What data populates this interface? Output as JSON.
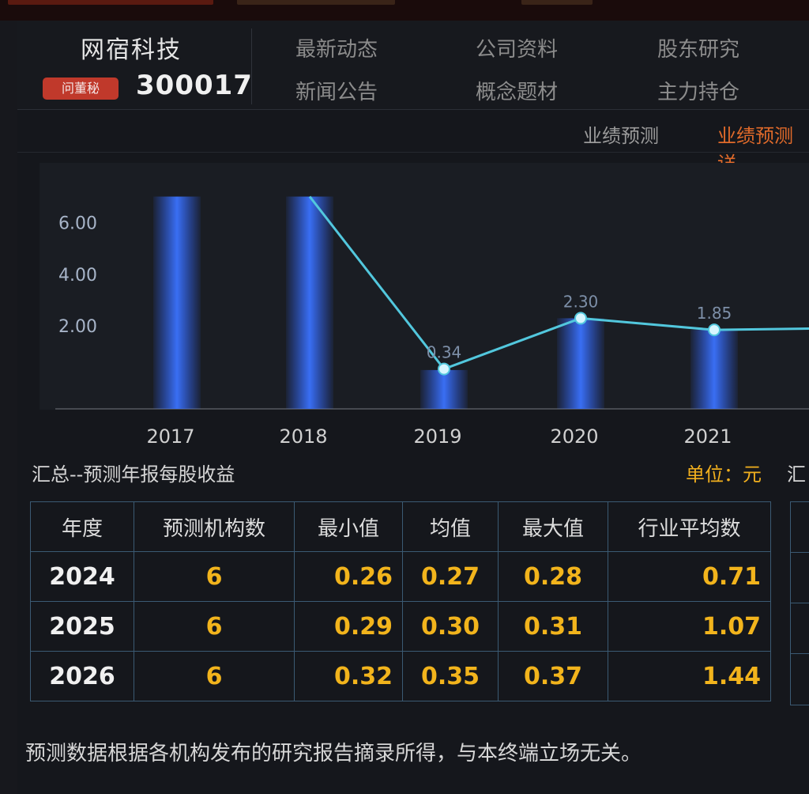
{
  "header": {
    "stock_name": "网宿科技",
    "badge": "问董秘",
    "stock_code": "300017",
    "nav": [
      {
        "label": "最新动态"
      },
      {
        "label": "公司资料"
      },
      {
        "label": "股东研究"
      },
      {
        "label": "新闻公告"
      },
      {
        "label": "概念题材"
      },
      {
        "label": "主力持仓"
      }
    ]
  },
  "subtabs": [
    {
      "label": "业绩预测"
    },
    {
      "label": "业绩预测详"
    }
  ],
  "chart_data": {
    "type": "bar",
    "categories": [
      "2017",
      "2018",
      "2019",
      "2020",
      "2021"
    ],
    "y_ticks": [
      "6.00",
      "4.00",
      "2.00"
    ],
    "ylim": [
      -1.2,
      8.3
    ],
    "line_series": {
      "values": [
        null,
        7.0,
        0.34,
        2.3,
        1.85
      ],
      "labels": [
        "",
        "",
        "0.34",
        "2.30",
        "1.85"
      ]
    },
    "bar_series": {
      "values": [
        7.0,
        7.0,
        0.3,
        2.3,
        1.85
      ]
    },
    "colors": {
      "line": "#52c7dd",
      "bar": "#2f63ff"
    }
  },
  "caption": "汇总--预测年报每股收益",
  "unit": "单位：元",
  "unit_extra": "汇",
  "table": {
    "headers": [
      "年度",
      "预测机构数",
      "最小值",
      "均值",
      "最大值",
      "行业平均数"
    ],
    "rows": [
      {
        "year": "2024",
        "count": "6",
        "min": "0.26",
        "avg": "0.27",
        "max": "0.28",
        "industry": "0.71"
      },
      {
        "year": "2025",
        "count": "6",
        "min": "0.29",
        "avg": "0.30",
        "max": "0.31",
        "industry": "1.07"
      },
      {
        "year": "2026",
        "count": "6",
        "min": "0.32",
        "avg": "0.35",
        "max": "0.37",
        "industry": "1.44"
      }
    ]
  },
  "footnote": "预测数据根据各机构发布的研究报告摘录所得，与本终端立场无关。"
}
